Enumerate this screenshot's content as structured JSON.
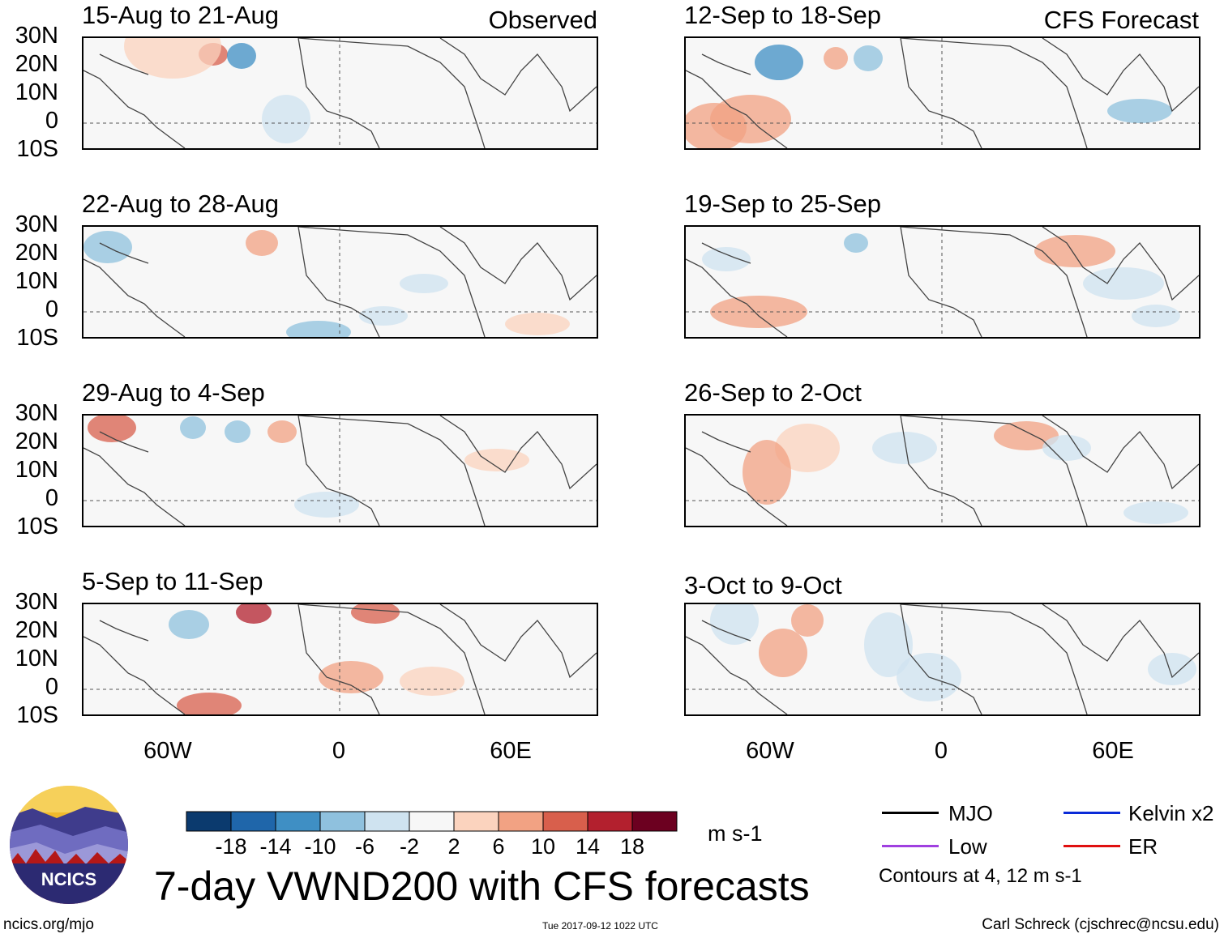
{
  "panels_left": [
    {
      "title": "15-Aug to 21-Aug",
      "corner": "Observed"
    },
    {
      "title": "22-Aug to 28-Aug",
      "corner": ""
    },
    {
      "title": "29-Aug to 4-Sep",
      "corner": ""
    },
    {
      "title": "5-Sep to 11-Sep",
      "corner": ""
    }
  ],
  "panels_right": [
    {
      "title": "12-Sep to 18-Sep",
      "corner": "CFS Forecast"
    },
    {
      "title": "19-Sep to 25-Sep",
      "corner": ""
    },
    {
      "title": "26-Sep to 2-Oct",
      "corner": ""
    },
    {
      "title": "3-Oct to 9-Oct",
      "corner": ""
    }
  ],
  "lat_labels": [
    "30N",
    "20N",
    "10N",
    "0",
    "10S"
  ],
  "lon_labels": [
    "60W",
    "0",
    "60E"
  ],
  "colorbar": {
    "colors": [
      "#0b3a6e",
      "#1f66aa",
      "#3f8fc4",
      "#8fc1de",
      "#cfe3f0",
      "#f7f7f7",
      "#fbd3be",
      "#f2a283",
      "#d85f4c",
      "#b3202e",
      "#6c0020"
    ],
    "labels": [
      "-18",
      "-14",
      "-10",
      "-6",
      "-2",
      "2",
      "6",
      "10",
      "14",
      "18"
    ],
    "units": "m s-1"
  },
  "title": "7-day VWND200 with CFS forecasts",
  "legend": {
    "items": [
      {
        "name": "MJO",
        "color": "#000000"
      },
      {
        "name": "Kelvin x2",
        "color": "#0a2bd8"
      },
      {
        "name": "Low",
        "color": "#a040e0"
      },
      {
        "name": "ER",
        "color": "#e01010"
      }
    ],
    "contour_note": "Contours at 4, 12 m s-1"
  },
  "logo_text": "NCICS",
  "footer": {
    "url": "ncics.org/mjo",
    "timestamp": "Tue 2017-09-12 1022 UTC",
    "author": "Carl Schreck (cjschrec@ncsu.edu)"
  }
}
